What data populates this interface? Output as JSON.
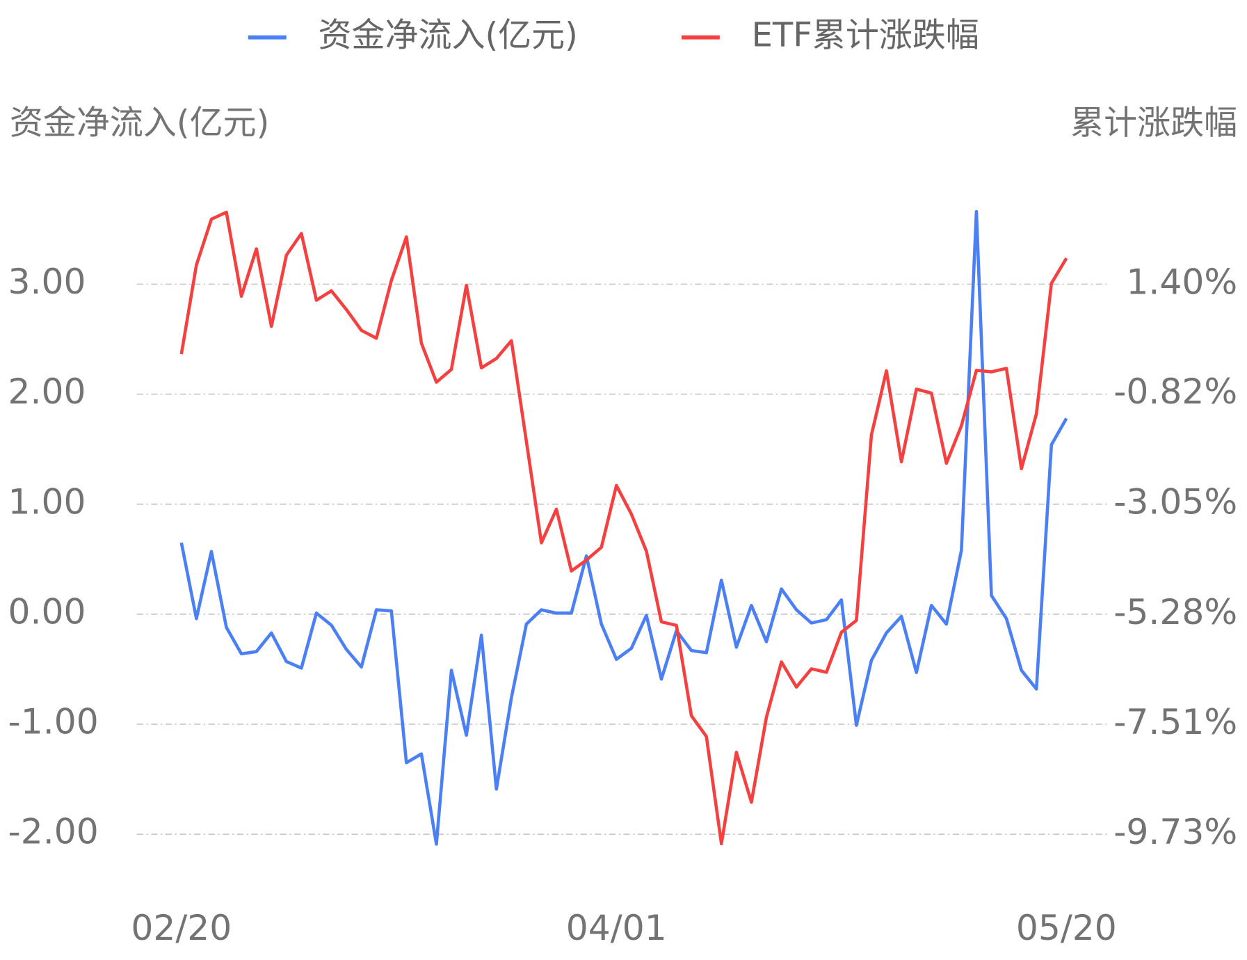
{
  "chart_data": {
    "type": "line",
    "ylabel": "资金净流入(亿元)",
    "y2label": "累计涨跌幅",
    "categories": [
      "02/20",
      null,
      null,
      null,
      null,
      null,
      null,
      null,
      null,
      null,
      null,
      null,
      null,
      null,
      null,
      null,
      null,
      null,
      null,
      null,
      null,
      null,
      null,
      null,
      null,
      null,
      null,
      null,
      null,
      "04/01",
      null,
      null,
      null,
      null,
      null,
      null,
      null,
      null,
      null,
      null,
      null,
      null,
      null,
      null,
      null,
      null,
      null,
      null,
      null,
      null,
      null,
      null,
      null,
      null,
      null,
      null,
      null,
      null,
      null,
      "05/20"
    ],
    "series": [
      {
        "name": "资金净流入(亿元)",
        "color": "#4a7ff5",
        "axis": "y",
        "values": [
          0.65,
          -0.04,
          0.57,
          -0.12,
          -0.36,
          -0.34,
          -0.17,
          -0.43,
          -0.49,
          0.01,
          -0.1,
          -0.32,
          -0.48,
          0.04,
          0.03,
          -1.35,
          -1.27,
          -2.09,
          -0.51,
          -1.1,
          -0.19,
          -1.59,
          -0.76,
          -0.09,
          0.04,
          0.01,
          0.01,
          0.53,
          -0.09,
          -0.41,
          -0.31,
          -0.01,
          -0.59,
          -0.15,
          -0.33,
          -0.35,
          0.31,
          -0.3,
          0.08,
          -0.25,
          0.23,
          0.04,
          -0.08,
          -0.05,
          0.13,
          -1.01,
          -0.42,
          -0.17,
          -0.02,
          -0.53,
          0.08,
          -0.09,
          0.58,
          3.66,
          0.17,
          -0.04,
          -0.51,
          -0.68,
          1.54,
          1.78
        ]
      },
      {
        "name": "ETF累计涨跌幅",
        "color": "#f5403f",
        "axis": "y2",
        "values": [
          -0.01,
          1.79,
          2.72,
          2.86,
          1.16,
          2.12,
          0.55,
          1.99,
          2.43,
          1.08,
          1.27,
          0.89,
          0.47,
          0.31,
          1.48,
          2.36,
          0.21,
          -0.58,
          -0.32,
          1.38,
          -0.29,
          -0.1,
          0.26,
          -1.78,
          -3.83,
          -3.15,
          -4.4,
          -4.18,
          -3.92,
          -2.67,
          -3.25,
          -4.0,
          -5.43,
          -5.5,
          -7.33,
          -7.75,
          -9.92,
          -8.07,
          -9.08,
          -7.36,
          -6.24,
          -6.75,
          -6.38,
          -6.45,
          -5.64,
          -5.4,
          -1.65,
          -0.35,
          -2.19,
          -0.72,
          -0.8,
          -2.22,
          -1.46,
          -0.34,
          -0.37,
          -0.3,
          -2.33,
          -1.22,
          1.42,
          1.93
        ]
      }
    ],
    "ylim": [
      -2.5,
      4.0
    ],
    "yticks": [
      {
        "value": 3,
        "label": "3.00"
      },
      {
        "value": 2,
        "label": "2.00"
      },
      {
        "value": 1,
        "label": "1.00"
      },
      {
        "value": 0,
        "label": "0.00"
      },
      {
        "value": -1,
        "label": "-1.00"
      },
      {
        "value": -2,
        "label": "-2.00"
      }
    ],
    "y2lim": [
      -10.84,
      3.63
    ],
    "y2ticks": [
      {
        "value": 1.4,
        "label": "1.40%"
      },
      {
        "value": -0.82,
        "label": "-0.82%"
      },
      {
        "value": -3.05,
        "label": "-3.05%"
      },
      {
        "value": -5.28,
        "label": "-5.28%"
      },
      {
        "value": -7.51,
        "label": "-7.51%"
      },
      {
        "value": -9.73,
        "label": "-9.73%"
      }
    ],
    "grid": true,
    "legend": "top"
  }
}
